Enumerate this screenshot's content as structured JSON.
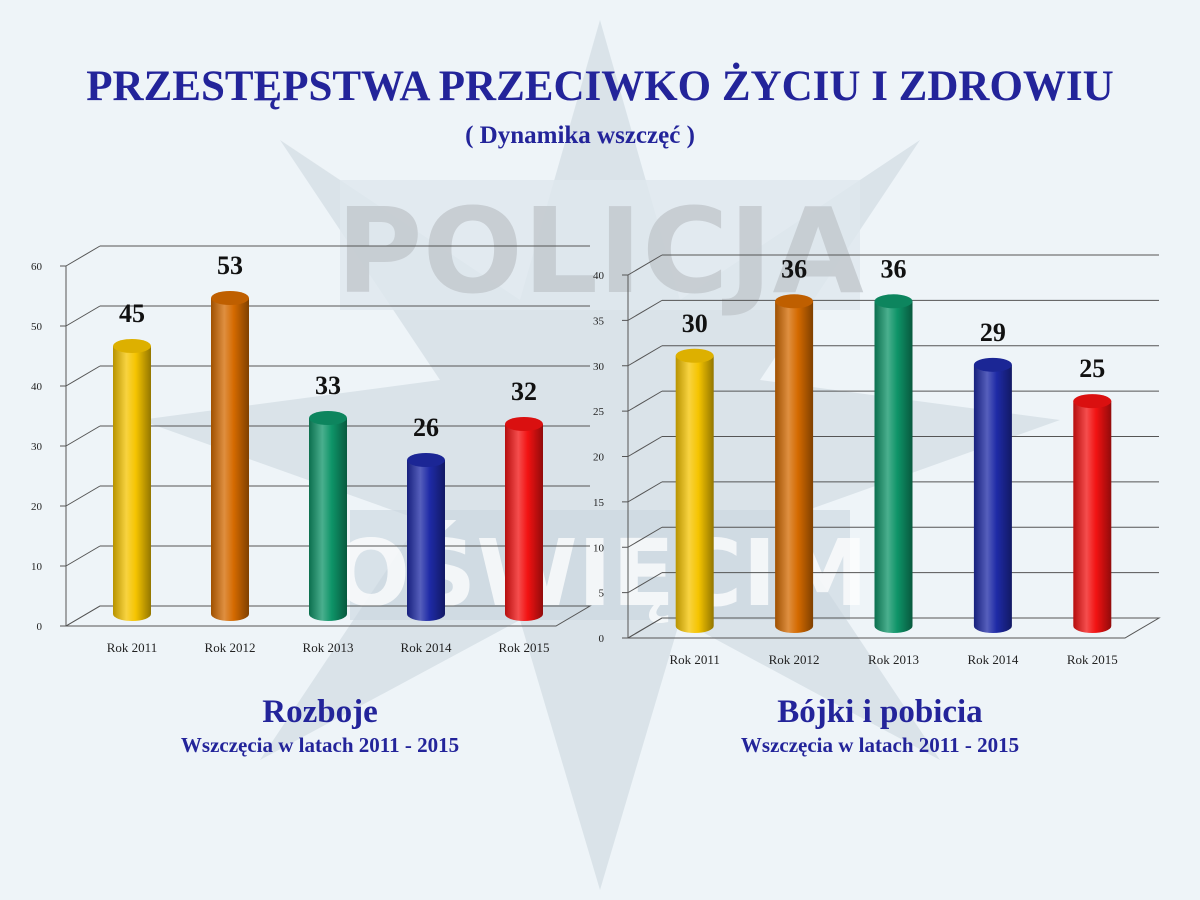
{
  "page": {
    "title": "PRZESTĘPSTWA PRZECIWKO ŻYCIU I ZDROWIU",
    "subtitle": "( Dynamika wszczęć )",
    "watermark": [
      "POLICJA",
      "OŚWIĘCIM"
    ]
  },
  "colors": {
    "title": "#23249a",
    "bars": [
      "#f5c400",
      "#d46a00",
      "#0e9468",
      "#1e2aa6",
      "#f21212"
    ]
  },
  "captions": [
    {
      "title": "Rozboje",
      "subtitle": "Wszczęcia w latach 2011 - 2015"
    },
    {
      "title": "Bójki i pobicia",
      "subtitle": "Wszczęcia w latach 2011 - 2015"
    }
  ],
  "chart_data": [
    {
      "type": "bar",
      "categories": [
        "Rok 2011",
        "Rok 2012",
        "Rok 2013",
        "Rok 2014",
        "Rok 2015"
      ],
      "values": [
        45,
        53,
        33,
        26,
        32
      ],
      "yticks": [
        0,
        10,
        20,
        30,
        40,
        50,
        60
      ],
      "ylim": [
        0,
        60
      ],
      "grid": true,
      "data_labels": true,
      "title": "Rozboje"
    },
    {
      "type": "bar",
      "categories": [
        "Rok 2011",
        "Rok 2012",
        "Rok 2013",
        "Rok 2014",
        "Rok 2015"
      ],
      "values": [
        30,
        36,
        36,
        29,
        25
      ],
      "yticks": [
        0,
        5,
        10,
        15,
        20,
        25,
        30,
        35,
        40
      ],
      "ylim": [
        0,
        40
      ],
      "grid": true,
      "data_labels": true,
      "title": "Bójki i pobicia"
    }
  ]
}
